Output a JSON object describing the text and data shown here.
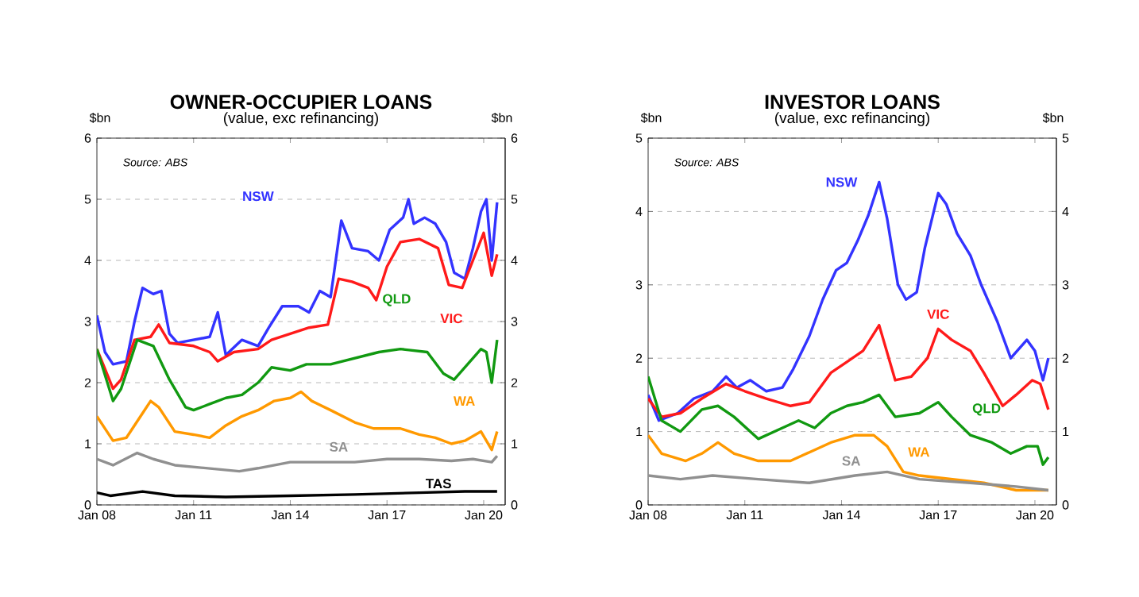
{
  "chart_data": [
    {
      "type": "line",
      "title": "OWNER-OCCUPIER  LOANS",
      "subtitle": "(value, exc refinancing)",
      "ylabel": "$bn",
      "y2label": "$bn",
      "annotations": [
        "Source: ABS"
      ],
      "grid": "y",
      "xlim": [
        "2008-01",
        "2020-09"
      ],
      "xticks": [
        {
          "value": "2008-01",
          "label": "Jan 08"
        },
        {
          "value": "2011-01",
          "label": "Jan 11"
        },
        {
          "value": "2014-01",
          "label": "Jan 14"
        },
        {
          "value": "2017-01",
          "label": "Jan 17"
        },
        {
          "value": "2020-01",
          "label": "Jan 20"
        }
      ],
      "ylim": [
        0,
        6
      ],
      "yticks": [
        0,
        1,
        2,
        3,
        4,
        5,
        6
      ],
      "y2lim": [
        0,
        6
      ],
      "y2ticks": [
        0,
        1,
        2,
        3,
        4,
        5,
        6
      ],
      "series": [
        {
          "name": "NSW",
          "color": "#3333ff",
          "x": [
            "2008-01",
            "2008-04",
            "2008-07",
            "2008-12",
            "2009-03",
            "2009-06",
            "2009-10",
            "2010-01",
            "2010-04",
            "2010-07",
            "2011-01",
            "2011-07",
            "2011-10",
            "2012-01",
            "2012-07",
            "2013-01",
            "2013-05",
            "2013-10",
            "2014-04",
            "2014-08",
            "2014-12",
            "2015-04",
            "2015-08",
            "2015-12",
            "2016-06",
            "2016-10",
            "2017-02",
            "2017-07",
            "2017-09",
            "2017-11",
            "2018-03",
            "2018-07",
            "2018-11",
            "2019-02",
            "2019-06",
            "2019-09",
            "2019-12",
            "2020-02",
            "2020-04",
            "2020-06"
          ],
          "values": [
            3.1,
            2.5,
            2.3,
            2.35,
            3.0,
            3.55,
            3.45,
            3.5,
            2.8,
            2.65,
            2.7,
            2.75,
            3.15,
            2.45,
            2.7,
            2.6,
            2.9,
            3.25,
            3.25,
            3.15,
            3.5,
            3.4,
            4.65,
            4.2,
            4.15,
            4.0,
            4.5,
            4.7,
            5.0,
            4.6,
            4.7,
            4.6,
            4.3,
            3.8,
            3.7,
            4.2,
            4.8,
            5.0,
            4.0,
            4.95
          ]
        },
        {
          "name": "VIC",
          "color": "#ff1a1a",
          "x": [
            "2008-01",
            "2008-07",
            "2008-10",
            "2009-03",
            "2009-09",
            "2009-12",
            "2010-04",
            "2011-01",
            "2011-07",
            "2011-10",
            "2012-04",
            "2013-01",
            "2013-06",
            "2014-01",
            "2014-08",
            "2015-03",
            "2015-07",
            "2015-12",
            "2016-06",
            "2016-09",
            "2017-01",
            "2017-06",
            "2018-01",
            "2018-08",
            "2018-12",
            "2019-05",
            "2019-09",
            "2020-01",
            "2020-04",
            "2020-06"
          ],
          "values": [
            2.55,
            1.9,
            2.05,
            2.7,
            2.75,
            2.95,
            2.65,
            2.6,
            2.5,
            2.35,
            2.5,
            2.55,
            2.7,
            2.8,
            2.9,
            2.95,
            3.7,
            3.65,
            3.55,
            3.35,
            3.9,
            4.3,
            4.35,
            4.2,
            3.6,
            3.55,
            4.0,
            4.45,
            3.75,
            4.1
          ]
        },
        {
          "name": "QLD",
          "color": "#119911",
          "x": [
            "2008-01",
            "2008-07",
            "2008-10",
            "2009-04",
            "2009-10",
            "2010-04",
            "2010-10",
            "2011-01",
            "2011-07",
            "2012-01",
            "2012-07",
            "2013-01",
            "2013-06",
            "2014-01",
            "2014-07",
            "2015-04",
            "2016-01",
            "2016-10",
            "2017-06",
            "2018-04",
            "2018-10",
            "2019-02",
            "2019-07",
            "2019-12",
            "2020-02",
            "2020-04",
            "2020-06"
          ],
          "values": [
            2.55,
            1.7,
            1.9,
            2.7,
            2.6,
            2.05,
            1.6,
            1.55,
            1.65,
            1.75,
            1.8,
            2.0,
            2.25,
            2.2,
            2.3,
            2.3,
            2.4,
            2.5,
            2.55,
            2.5,
            2.15,
            2.05,
            2.3,
            2.55,
            2.5,
            2.0,
            2.7
          ]
        },
        {
          "name": "WA",
          "color": "#ff9900",
          "x": [
            "2008-01",
            "2008-07",
            "2008-12",
            "2009-06",
            "2009-09",
            "2009-12",
            "2010-06",
            "2011-01",
            "2011-07",
            "2012-01",
            "2012-07",
            "2013-01",
            "2013-07",
            "2014-01",
            "2014-05",
            "2014-09",
            "2015-04",
            "2016-01",
            "2016-08",
            "2017-06",
            "2018-01",
            "2018-07",
            "2019-01",
            "2019-06",
            "2019-12",
            "2020-04",
            "2020-06"
          ],
          "values": [
            1.45,
            1.05,
            1.1,
            1.5,
            1.7,
            1.6,
            1.2,
            1.15,
            1.1,
            1.3,
            1.45,
            1.55,
            1.7,
            1.75,
            1.85,
            1.7,
            1.55,
            1.35,
            1.25,
            1.25,
            1.15,
            1.1,
            1.0,
            1.05,
            1.2,
            0.9,
            1.2
          ]
        },
        {
          "name": "SA",
          "color": "#909090",
          "x": [
            "2008-01",
            "2008-07",
            "2009-04",
            "2009-10",
            "2010-06",
            "2011-06",
            "2012-06",
            "2013-01",
            "2014-01",
            "2015-01",
            "2016-01",
            "2017-01",
            "2018-01",
            "2019-01",
            "2019-09",
            "2020-04",
            "2020-06"
          ],
          "values": [
            0.75,
            0.65,
            0.85,
            0.75,
            0.65,
            0.6,
            0.55,
            0.6,
            0.7,
            0.7,
            0.7,
            0.75,
            0.75,
            0.72,
            0.75,
            0.7,
            0.8
          ]
        },
        {
          "name": "TAS",
          "color": "#000000",
          "x": [
            "2008-01",
            "2008-06",
            "2009-06",
            "2010-06",
            "2012-01",
            "2014-01",
            "2016-01",
            "2018-01",
            "2019-06",
            "2020-06"
          ],
          "values": [
            0.2,
            0.15,
            0.22,
            0.15,
            0.13,
            0.15,
            0.17,
            0.2,
            0.22,
            0.22
          ]
        }
      ]
    },
    {
      "type": "line",
      "title": "INVESTOR LOANS",
      "subtitle": "(value, exc refinancing)",
      "ylabel": "$bn",
      "y2label": "$bn",
      "annotations": [
        "Source: ABS"
      ],
      "grid": "y",
      "xlim": [
        "2008-01",
        "2020-09"
      ],
      "xticks": [
        {
          "value": "2008-01",
          "label": "Jan 08"
        },
        {
          "value": "2011-01",
          "label": "Jan 11"
        },
        {
          "value": "2014-01",
          "label": "Jan 14"
        },
        {
          "value": "2017-01",
          "label": "Jan 17"
        },
        {
          "value": "2020-01",
          "label": "Jan 20"
        }
      ],
      "ylim": [
        0,
        5
      ],
      "yticks": [
        0,
        1,
        2,
        3,
        4,
        5
      ],
      "y2lim": [
        0,
        5
      ],
      "y2ticks": [
        0,
        1,
        2,
        3,
        4,
        5
      ],
      "series": [
        {
          "name": "NSW",
          "color": "#3333ff",
          "x": [
            "2008-01",
            "2008-05",
            "2008-12",
            "2009-06",
            "2010-01",
            "2010-06",
            "2010-10",
            "2011-03",
            "2011-09",
            "2012-03",
            "2012-07",
            "2013-01",
            "2013-06",
            "2013-11",
            "2014-03",
            "2014-07",
            "2014-11",
            "2015-03",
            "2015-06",
            "2015-10",
            "2016-01",
            "2016-05",
            "2016-08",
            "2017-01",
            "2017-04",
            "2017-08",
            "2018-01",
            "2018-05",
            "2018-11",
            "2019-04",
            "2019-10",
            "2020-01",
            "2020-04",
            "2020-06"
          ],
          "values": [
            1.5,
            1.15,
            1.25,
            1.45,
            1.55,
            1.75,
            1.6,
            1.7,
            1.55,
            1.6,
            1.85,
            2.3,
            2.8,
            3.2,
            3.3,
            3.6,
            3.95,
            4.4,
            3.9,
            3.0,
            2.8,
            2.9,
            3.5,
            4.25,
            4.1,
            3.7,
            3.4,
            3.0,
            2.5,
            2.0,
            2.25,
            2.1,
            1.7,
            2.0
          ]
        },
        {
          "name": "VIC",
          "color": "#ff1a1a",
          "x": [
            "2008-01",
            "2008-06",
            "2009-01",
            "2009-09",
            "2010-06",
            "2011-01",
            "2011-09",
            "2012-06",
            "2013-01",
            "2013-09",
            "2014-03",
            "2014-09",
            "2015-03",
            "2015-09",
            "2016-03",
            "2016-09",
            "2017-01",
            "2017-06",
            "2018-01",
            "2018-06",
            "2019-01",
            "2019-06",
            "2019-12",
            "2020-03",
            "2020-06"
          ],
          "values": [
            1.45,
            1.2,
            1.25,
            1.45,
            1.65,
            1.55,
            1.45,
            1.35,
            1.4,
            1.8,
            1.95,
            2.1,
            2.45,
            1.7,
            1.75,
            2.0,
            2.4,
            2.25,
            2.1,
            1.8,
            1.35,
            1.5,
            1.7,
            1.65,
            1.3
          ]
        },
        {
          "name": "QLD",
          "color": "#119911",
          "x": [
            "2008-01",
            "2008-06",
            "2009-01",
            "2009-09",
            "2010-03",
            "2010-09",
            "2011-06",
            "2012-03",
            "2012-09",
            "2013-03",
            "2013-09",
            "2014-03",
            "2014-09",
            "2015-03",
            "2015-09",
            "2016-06",
            "2017-01",
            "2017-06",
            "2018-01",
            "2018-09",
            "2019-04",
            "2019-10",
            "2020-02",
            "2020-04",
            "2020-06"
          ],
          "values": [
            1.75,
            1.15,
            1.0,
            1.3,
            1.35,
            1.2,
            0.9,
            1.05,
            1.15,
            1.05,
            1.25,
            1.35,
            1.4,
            1.5,
            1.2,
            1.25,
            1.4,
            1.2,
            0.95,
            0.85,
            0.7,
            0.8,
            0.8,
            0.55,
            0.65
          ]
        },
        {
          "name": "WA",
          "color": "#ff9900",
          "x": [
            "2008-01",
            "2008-06",
            "2009-03",
            "2009-09",
            "2010-03",
            "2010-09",
            "2011-06",
            "2012-06",
            "2013-03",
            "2013-09",
            "2014-06",
            "2015-01",
            "2015-06",
            "2015-12",
            "2016-06",
            "2017-06",
            "2018-06",
            "2019-06",
            "2020-06"
          ],
          "values": [
            0.95,
            0.7,
            0.6,
            0.7,
            0.85,
            0.7,
            0.6,
            0.6,
            0.75,
            0.85,
            0.95,
            0.95,
            0.8,
            0.45,
            0.4,
            0.35,
            0.3,
            0.2,
            0.2
          ]
        },
        {
          "name": "SA",
          "color": "#909090",
          "x": [
            "2008-01",
            "2009-01",
            "2010-01",
            "2011-06",
            "2013-01",
            "2014-06",
            "2015-06",
            "2016-06",
            "2018-01",
            "2019-06",
            "2020-06"
          ],
          "values": [
            0.4,
            0.35,
            0.4,
            0.35,
            0.3,
            0.4,
            0.45,
            0.35,
            0.3,
            0.25,
            0.2
          ]
        }
      ]
    }
  ]
}
